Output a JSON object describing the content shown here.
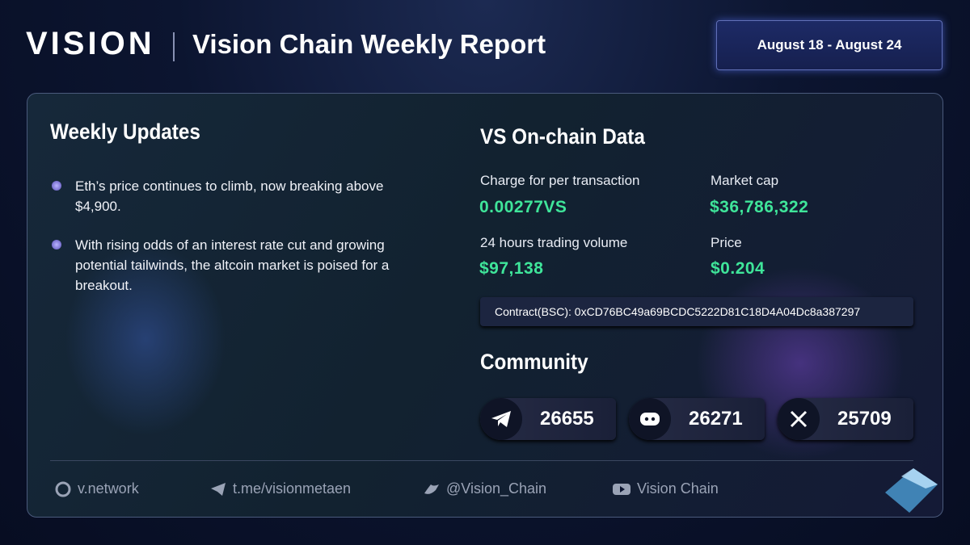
{
  "header": {
    "brand": "VISION",
    "title": "Vision Chain Weekly Report",
    "date_range": "August 18 - August 24"
  },
  "weekly_updates": {
    "heading": "Weekly Updates",
    "items": [
      "Eth’s price continues to climb, now breaking above $4,900.",
      "With rising odds of an interest rate cut and growing potential tailwinds, the altcoin market is poised for a breakout."
    ]
  },
  "onchain": {
    "heading": "VS On-chain Data",
    "metrics": [
      {
        "label": "Charge for per transaction",
        "value": "0.00277VS"
      },
      {
        "label": "Market cap",
        "value": "$36,786,322"
      },
      {
        "label": "24 hours trading volume",
        "value": "$97,138"
      },
      {
        "label": "Price",
        "value": "$0.204"
      }
    ],
    "contract": "Contract(BSC): 0xCD76BC49a69BCDC5222D81C18D4A04Dc8a387297"
  },
  "community": {
    "heading": "Community",
    "counts": [
      {
        "platform": "telegram",
        "value": "26655"
      },
      {
        "platform": "discord",
        "value": "26271"
      },
      {
        "platform": "x",
        "value": "25709"
      }
    ]
  },
  "footer": {
    "links": [
      "v.network",
      "t.me/visionmetaen",
      "@Vision_Chain",
      "Vision Chain"
    ]
  }
}
